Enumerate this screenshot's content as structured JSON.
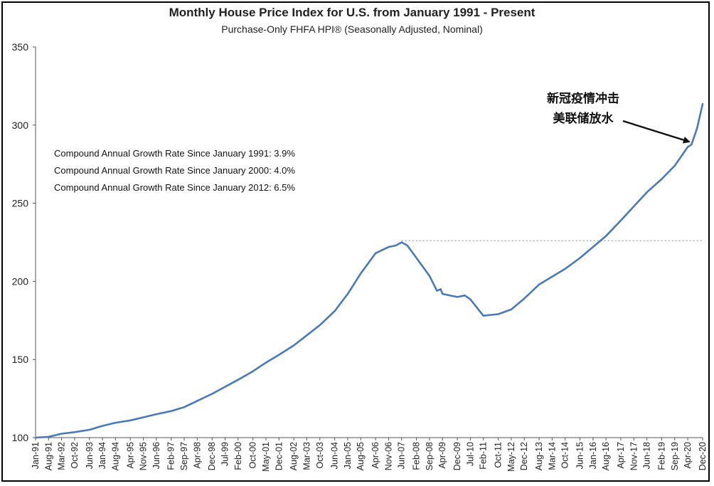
{
  "chart_data": {
    "type": "line",
    "title": "Monthly House Price Index for U.S. from January 1991 - Present",
    "subtitle": "Purchase-Only FHFA HPI® (Seasonally Adjusted, Nominal)",
    "xlabel": "",
    "ylabel": "",
    "ylim": [
      100,
      350
    ],
    "yticks": [
      "100",
      "150",
      "200",
      "250",
      "300",
      "350"
    ],
    "xlim": [
      "1991-01",
      "2020-12"
    ],
    "xticks": [
      {
        "date": "1991-01",
        "label": "Jan-91"
      },
      {
        "date": "1991-08",
        "label": "Aug-91"
      },
      {
        "date": "1992-03",
        "label": "Mar-92"
      },
      {
        "date": "1992-10",
        "label": "Oct-92"
      },
      {
        "date": "1993-06",
        "label": "Jun-93"
      },
      {
        "date": "1994-01",
        "label": "Jan-94"
      },
      {
        "date": "1994-08",
        "label": "Aug-94"
      },
      {
        "date": "1995-04",
        "label": "Apr-95"
      },
      {
        "date": "1995-11",
        "label": "Nov-95"
      },
      {
        "date": "1996-06",
        "label": "Jun-96"
      },
      {
        "date": "1997-02",
        "label": "Feb-97"
      },
      {
        "date": "1997-09",
        "label": "Sep-97"
      },
      {
        "date": "1998-04",
        "label": "Apr-98"
      },
      {
        "date": "1998-12",
        "label": "Dec-98"
      },
      {
        "date": "1999-07",
        "label": "Jul-99"
      },
      {
        "date": "2000-02",
        "label": "Feb-00"
      },
      {
        "date": "2000-10",
        "label": "Oct-00"
      },
      {
        "date": "2001-05",
        "label": "May-01"
      },
      {
        "date": "2001-12",
        "label": "Dec-01"
      },
      {
        "date": "2002-08",
        "label": "Aug-02"
      },
      {
        "date": "2003-03",
        "label": "Mar-03"
      },
      {
        "date": "2003-10",
        "label": "Oct-03"
      },
      {
        "date": "2004-06",
        "label": "Jun-04"
      },
      {
        "date": "2005-01",
        "label": "Jan-05"
      },
      {
        "date": "2005-08",
        "label": "Aug-05"
      },
      {
        "date": "2006-04",
        "label": "Apr-06"
      },
      {
        "date": "2006-11",
        "label": "Nov-06"
      },
      {
        "date": "2007-06",
        "label": "Jun-07"
      },
      {
        "date": "2008-02",
        "label": "Feb-08"
      },
      {
        "date": "2008-09",
        "label": "Sep-08"
      },
      {
        "date": "2009-04",
        "label": "Apr-09"
      },
      {
        "date": "2009-12",
        "label": "Dec-09"
      },
      {
        "date": "2010-07",
        "label": "Jul-10"
      },
      {
        "date": "2011-02",
        "label": "Feb-11"
      },
      {
        "date": "2011-10",
        "label": "Oct-11"
      },
      {
        "date": "2012-05",
        "label": "May-12"
      },
      {
        "date": "2012-12",
        "label": "Dec-12"
      },
      {
        "date": "2013-08",
        "label": "Aug-13"
      },
      {
        "date": "2014-03",
        "label": "Mar-14"
      },
      {
        "date": "2014-10",
        "label": "Oct-14"
      },
      {
        "date": "2015-06",
        "label": "Jun-15"
      },
      {
        "date": "2016-01",
        "label": "Jan-16"
      },
      {
        "date": "2016-08",
        "label": "Aug-16"
      },
      {
        "date": "2017-04",
        "label": "Apr-17"
      },
      {
        "date": "2017-11",
        "label": "Nov-17"
      },
      {
        "date": "2018-06",
        "label": "Jun-18"
      },
      {
        "date": "2019-02",
        "label": "Feb-19"
      },
      {
        "date": "2019-09",
        "label": "Sep-19"
      },
      {
        "date": "2020-04",
        "label": "Apr-20"
      },
      {
        "date": "2020-12",
        "label": "Dec-20"
      }
    ],
    "grid": false,
    "legend": "none",
    "series": [
      {
        "color": "#4a7ab5",
        "points": [
          [
            "1991-01",
            100.0
          ],
          [
            "1991-08",
            100.5
          ],
          [
            "1992-03",
            102.5
          ],
          [
            "1992-10",
            103.5
          ],
          [
            "1993-06",
            105.0
          ],
          [
            "1994-01",
            107.5
          ],
          [
            "1994-08",
            109.5
          ],
          [
            "1995-04",
            111.0
          ],
          [
            "1995-11",
            113.0
          ],
          [
            "1996-06",
            115.0
          ],
          [
            "1997-02",
            117.0
          ],
          [
            "1997-09",
            119.5
          ],
          [
            "1998-04",
            123.5
          ],
          [
            "1998-12",
            128.0
          ],
          [
            "1999-07",
            132.5
          ],
          [
            "2000-02",
            137.0
          ],
          [
            "2000-10",
            142.5
          ],
          [
            "2001-05",
            148.0
          ],
          [
            "2001-12",
            153.0
          ],
          [
            "2002-08",
            159.0
          ],
          [
            "2003-03",
            165.5
          ],
          [
            "2003-10",
            172.0
          ],
          [
            "2004-06",
            181.0
          ],
          [
            "2005-01",
            192.0
          ],
          [
            "2005-08",
            205.0
          ],
          [
            "2006-04",
            218.0
          ],
          [
            "2006-11",
            222.0
          ],
          [
            "2007-03",
            223.0
          ],
          [
            "2007-06",
            225.0
          ],
          [
            "2007-09",
            223.0
          ],
          [
            "2008-02",
            215.0
          ],
          [
            "2008-09",
            203.5
          ],
          [
            "2009-01",
            194.0
          ],
          [
            "2009-03",
            195.0
          ],
          [
            "2009-04",
            192.0
          ],
          [
            "2009-12",
            190.0
          ],
          [
            "2010-04",
            191.0
          ],
          [
            "2010-07",
            188.5
          ],
          [
            "2011-02",
            178.0
          ],
          [
            "2011-10",
            179.0
          ],
          [
            "2012-05",
            182.0
          ],
          [
            "2012-12",
            189.0
          ],
          [
            "2013-08",
            198.0
          ],
          [
            "2014-03",
            203.0
          ],
          [
            "2014-10",
            208.0
          ],
          [
            "2015-06",
            215.0
          ],
          [
            "2016-01",
            222.0
          ],
          [
            "2016-08",
            229.0
          ],
          [
            "2017-04",
            239.0
          ],
          [
            "2017-11",
            248.0
          ],
          [
            "2018-06",
            257.0
          ],
          [
            "2019-02",
            265.5
          ],
          [
            "2019-09",
            274.0
          ],
          [
            "2020-04",
            286.0
          ],
          [
            "2020-06",
            287.5
          ],
          [
            "2020-09",
            298.0
          ],
          [
            "2020-12",
            313.5
          ]
        ]
      }
    ],
    "reference_line": {
      "value": 226,
      "from": "2007-06",
      "to": "2020-12",
      "style": "dotted",
      "color": "#999999"
    },
    "notes": [
      "Compound Annual Growth Rate Since January 1991:  3.9%",
      "Compound Annual Growth Rate Since January 2000:  4.0%",
      "Compound Annual Growth Rate Since January 2012:  6.5%"
    ],
    "annotation": {
      "lines": [
        "新冠疫情冲击",
        "美联储放水"
      ],
      "arrow_to": [
        "2020-07",
        288
      ]
    }
  }
}
